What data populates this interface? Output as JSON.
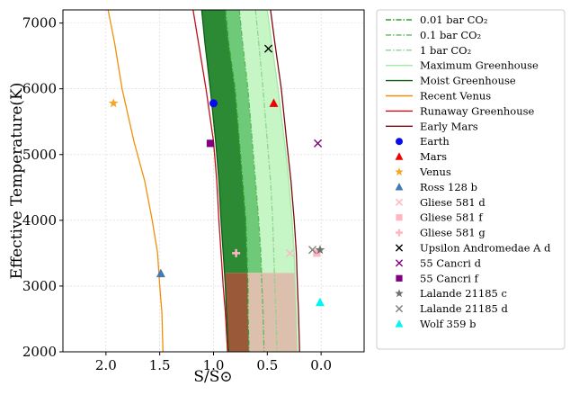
{
  "chart_data": {
    "type": "line",
    "xlabel": "S/S⊙",
    "ylabel": "Effective Temperature(K)",
    "xlim": [
      2.4,
      -0.4
    ],
    "ylim": [
      2000,
      7200
    ],
    "x_ticks": [
      2.0,
      1.5,
      1.0,
      0.5,
      0.0
    ],
    "x_tick_labels": [
      "2.0",
      "1.5",
      "1.0",
      "0.5",
      "0.0"
    ],
    "y_ticks": [
      2000,
      3000,
      4000,
      5000,
      6000,
      7000
    ],
    "y_tick_labels": [
      "2000",
      "3000",
      "4000",
      "5000",
      "6000",
      "7000"
    ],
    "grid": true,
    "legend_position": "outside-right",
    "shaded_regions": [
      {
        "name": "conservative-hz",
        "color": "#2d8a34",
        "left_edge": "Moist Greenhouse",
        "right_edge": "0.01 bar CO2",
        "teff_range": [
          3200,
          7200
        ]
      },
      {
        "name": "co2-hz-band",
        "color": "#6ec978",
        "left_edge": "0.01 bar CO2",
        "right_edge": "0.1 bar CO2",
        "teff_range": [
          3200,
          7200
        ]
      },
      {
        "name": "outer-hz-band",
        "color": "#c6f5c6",
        "left_edge": "0.1 bar CO2",
        "right_edge": "Maximum Greenhouse",
        "teff_range": [
          3200,
          7200
        ]
      },
      {
        "name": "cool-star-inner",
        "color": "#9a5a3a",
        "left_edge": "Moist Greenhouse",
        "right_edge": "0.01 bar CO2",
        "teff_range": [
          2000,
          3200
        ]
      },
      {
        "name": "cool-star-outer",
        "color": "#ddbfae",
        "left_edge": "0.01 bar CO2",
        "right_edge": "Maximum Greenhouse",
        "teff_range": [
          2000,
          3200
        ]
      }
    ],
    "series": [
      {
        "name": "0.01 bar CO₂",
        "color": "#2ca02c",
        "dash": "dashdot",
        "points": [
          [
            0.89,
            7200
          ],
          [
            0.86,
            6700
          ],
          [
            0.8,
            6000
          ],
          [
            0.76,
            5200
          ],
          [
            0.73,
            4600
          ],
          [
            0.7,
            4000
          ],
          [
            0.69,
            3500
          ],
          [
            0.68,
            3000
          ],
          [
            0.68,
            2600
          ],
          [
            0.67,
            2000
          ]
        ]
      },
      {
        "name": "0.1 bar CO₂",
        "color": "#5cb85c",
        "dash": "dashdot",
        "points": [
          [
            0.76,
            7200
          ],
          [
            0.73,
            6700
          ],
          [
            0.68,
            6000
          ],
          [
            0.64,
            5200
          ],
          [
            0.61,
            4600
          ],
          [
            0.58,
            4000
          ],
          [
            0.56,
            3500
          ],
          [
            0.55,
            3000
          ],
          [
            0.54,
            2600
          ],
          [
            0.53,
            2000
          ]
        ]
      },
      {
        "name": "1 bar CO₂",
        "color": "#8ed38e",
        "dash": "dashdot",
        "points": [
          [
            0.61,
            7200
          ],
          [
            0.58,
            6700
          ],
          [
            0.54,
            6000
          ],
          [
            0.5,
            5200
          ],
          [
            0.47,
            4600
          ],
          [
            0.45,
            4000
          ],
          [
            0.44,
            3500
          ],
          [
            0.43,
            3000
          ],
          [
            0.42,
            2600
          ],
          [
            0.41,
            2000
          ]
        ]
      },
      {
        "name": "Maximum Greenhouse",
        "color": "#a3e8a3",
        "dash": "solid",
        "points": [
          [
            0.5,
            7200
          ],
          [
            0.46,
            6700
          ],
          [
            0.4,
            6000
          ],
          [
            0.34,
            5200
          ],
          [
            0.3,
            4600
          ],
          [
            0.27,
            4000
          ],
          [
            0.25,
            3500
          ],
          [
            0.24,
            3000
          ],
          [
            0.23,
            2600
          ],
          [
            0.22,
            2000
          ]
        ]
      },
      {
        "name": "Moist Greenhouse",
        "color": "#0b5e12",
        "dash": "solid",
        "points": [
          [
            1.11,
            7200
          ],
          [
            1.08,
            6700
          ],
          [
            1.03,
            6000
          ],
          [
            0.98,
            5200
          ],
          [
            0.95,
            4600
          ],
          [
            0.93,
            4000
          ],
          [
            0.91,
            3500
          ],
          [
            0.89,
            3000
          ],
          [
            0.88,
            2600
          ],
          [
            0.86,
            2000
          ]
        ]
      },
      {
        "name": "Recent Venus",
        "color": "#f0900a",
        "dash": "solid",
        "points": [
          [
            1.98,
            7200
          ],
          [
            1.92,
            6700
          ],
          [
            1.85,
            6000
          ],
          [
            1.74,
            5200
          ],
          [
            1.64,
            4600
          ],
          [
            1.57,
            4000
          ],
          [
            1.52,
            3500
          ],
          [
            1.5,
            3000
          ],
          [
            1.48,
            2600
          ],
          [
            1.47,
            2000
          ]
        ]
      },
      {
        "name": "Runaway Greenhouse",
        "color": "#c0101a",
        "dash": "solid",
        "points": [
          [
            1.19,
            7200
          ],
          [
            1.14,
            6700
          ],
          [
            1.07,
            6000
          ],
          [
            1.0,
            5200
          ],
          [
            0.97,
            4600
          ],
          [
            0.95,
            4000
          ],
          [
            0.93,
            3500
          ],
          [
            0.91,
            3000
          ],
          [
            0.89,
            2600
          ],
          [
            0.87,
            2000
          ]
        ]
      },
      {
        "name": "Early Mars",
        "color": "#7a0a0a",
        "dash": "solid",
        "points": [
          [
            0.47,
            7200
          ],
          [
            0.43,
            6700
          ],
          [
            0.37,
            6000
          ],
          [
            0.32,
            5200
          ],
          [
            0.28,
            4600
          ],
          [
            0.25,
            4000
          ],
          [
            0.23,
            3500
          ],
          [
            0.22,
            3000
          ],
          [
            0.21,
            2600
          ],
          [
            0.2,
            2000
          ]
        ]
      }
    ],
    "planets": [
      {
        "name": "Earth",
        "marker": "circle",
        "color": "#0a0af0",
        "x": 1.0,
        "y": 5780
      },
      {
        "name": "Mars",
        "marker": "triangle",
        "color": "#f00000",
        "x": 0.44,
        "y": 5780
      },
      {
        "name": "Venus",
        "marker": "star",
        "color": "#f5a623",
        "x": 1.93,
        "y": 5780
      },
      {
        "name": "Ross 128 b",
        "marker": "triangle",
        "color": "#4679b0",
        "x": 1.49,
        "y": 3190
      },
      {
        "name": "Gliese 581 d",
        "marker": "x",
        "color": "#ffb6c1",
        "x": 0.29,
        "y": 3500
      },
      {
        "name": "Gliese 581 f",
        "marker": "square",
        "color": "#ffb6c1",
        "x": 0.04,
        "y": 3500
      },
      {
        "name": "Gliese 581 g",
        "marker": "plus",
        "color": "#ffb6c1",
        "x": 0.79,
        "y": 3500
      },
      {
        "name": "Upsilon Andromedae A d",
        "marker": "x",
        "color": "#000000",
        "x": 0.49,
        "y": 6610
      },
      {
        "name": "55 Cancri d",
        "marker": "x",
        "color": "#800080",
        "x": 0.03,
        "y": 5170
      },
      {
        "name": "55 Cancri f",
        "marker": "square",
        "color": "#800080",
        "x": 1.03,
        "y": 5170
      },
      {
        "name": "Lalande 21185 c",
        "marker": "star",
        "color": "#707070",
        "x": 0.01,
        "y": 3550
      },
      {
        "name": "Lalande 21185 d",
        "marker": "x",
        "color": "#808080",
        "x": 0.08,
        "y": 3550
      },
      {
        "name": "Wolf 359 b",
        "marker": "triangle",
        "color": "#00f5f5",
        "x": 0.01,
        "y": 2750
      }
    ],
    "legend": [
      {
        "label": "0.01 bar CO₂",
        "kind": "line",
        "color": "#2ca02c",
        "dash": "dashdot"
      },
      {
        "label": "0.1 bar CO₂",
        "kind": "line",
        "color": "#5cb85c",
        "dash": "dashdot"
      },
      {
        "label": "1 bar CO₂",
        "kind": "line",
        "color": "#8ed38e",
        "dash": "dashdot"
      },
      {
        "label": "Maximum Greenhouse",
        "kind": "line",
        "color": "#a3e8a3",
        "dash": "solid"
      },
      {
        "label": "Moist Greenhouse",
        "kind": "line",
        "color": "#0b5e12",
        "dash": "solid"
      },
      {
        "label": "Recent Venus",
        "kind": "line",
        "color": "#f0900a",
        "dash": "solid"
      },
      {
        "label": "Runaway Greenhouse",
        "kind": "line",
        "color": "#c0101a",
        "dash": "solid"
      },
      {
        "label": "Early Mars",
        "kind": "line",
        "color": "#7a0a0a",
        "dash": "solid"
      },
      {
        "label": "Earth",
        "kind": "marker",
        "marker": "circle",
        "color": "#0a0af0"
      },
      {
        "label": "Mars",
        "kind": "marker",
        "marker": "triangle",
        "color": "#f00000"
      },
      {
        "label": "Venus",
        "kind": "marker",
        "marker": "star",
        "color": "#f5a623"
      },
      {
        "label": "Ross 128 b",
        "kind": "marker",
        "marker": "triangle",
        "color": "#4679b0"
      },
      {
        "label": "Gliese 581 d",
        "kind": "marker",
        "marker": "x",
        "color": "#ffb6c1"
      },
      {
        "label": "Gliese 581 f",
        "kind": "marker",
        "marker": "square",
        "color": "#ffb6c1"
      },
      {
        "label": "Gliese 581 g",
        "kind": "marker",
        "marker": "plus",
        "color": "#ffb6c1"
      },
      {
        "label": "Upsilon Andromedae A d",
        "kind": "marker",
        "marker": "x",
        "color": "#000000"
      },
      {
        "label": "55 Cancri d",
        "kind": "marker",
        "marker": "x",
        "color": "#800080"
      },
      {
        "label": "55 Cancri f",
        "kind": "marker",
        "marker": "square",
        "color": "#800080"
      },
      {
        "label": "Lalande 21185 c",
        "kind": "marker",
        "marker": "star",
        "color": "#707070"
      },
      {
        "label": "Lalande 21185 d",
        "kind": "marker",
        "marker": "x",
        "color": "#808080"
      },
      {
        "label": "Wolf 359 b",
        "kind": "marker",
        "marker": "triangle",
        "color": "#00f5f5"
      }
    ]
  }
}
